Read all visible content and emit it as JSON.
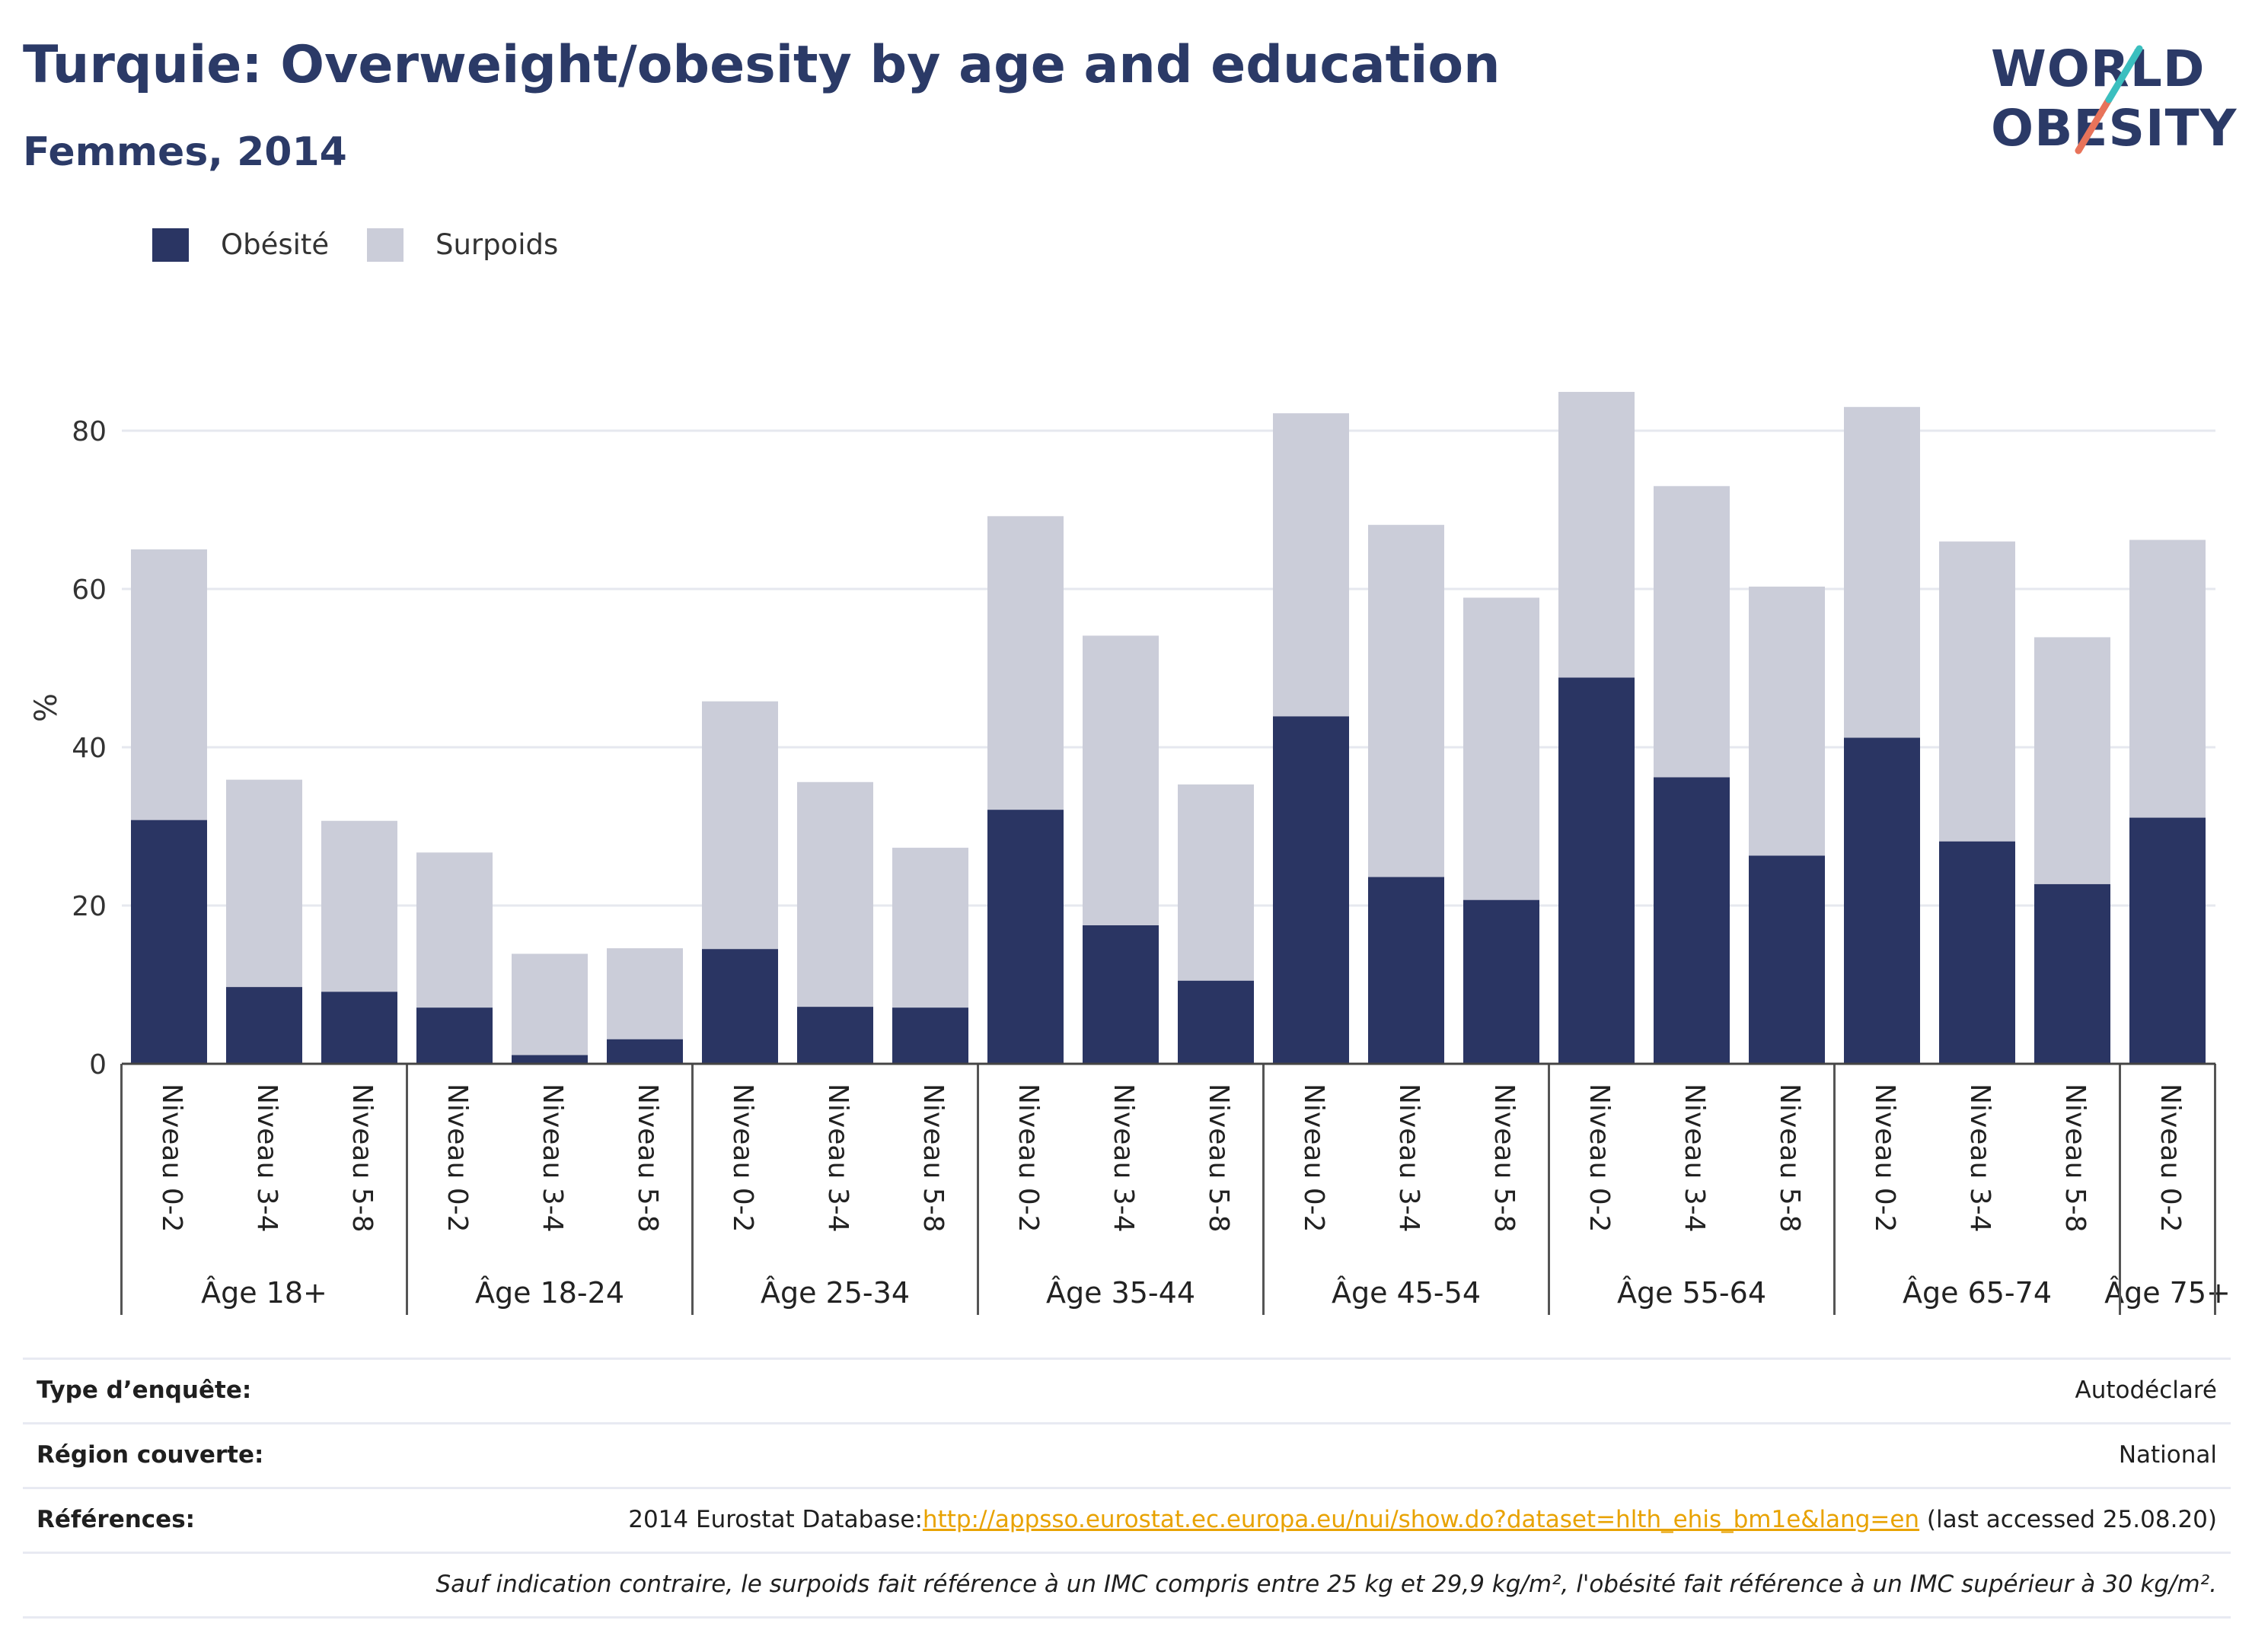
{
  "header": {
    "title": "Turquie: Overweight/obesity by age and education",
    "subtitle": "Femmes, 2014"
  },
  "logo": {
    "line1": "WORLD",
    "line2": "OBESITY"
  },
  "legend": {
    "items": [
      {
        "label": "Obésité",
        "color": "#2a3563"
      },
      {
        "label": "Surpoids",
        "color": "#cbcdd9"
      }
    ]
  },
  "chart_data": {
    "type": "bar",
    "stacked": true,
    "ylabel": "%",
    "ylim": [
      0,
      90
    ],
    "yticks": [
      0,
      20,
      40,
      60,
      80
    ],
    "grid": true,
    "legend_position": "top-left",
    "groups": [
      {
        "label": "Âge 18+",
        "categories": [
          "Niveau 0-2",
          "Niveau 3-4",
          "Niveau 5-8"
        ]
      },
      {
        "label": "Âge 18-24",
        "categories": [
          "Niveau 0-2",
          "Niveau 3-4",
          "Niveau 5-8"
        ]
      },
      {
        "label": "Âge 25-34",
        "categories": [
          "Niveau 0-2",
          "Niveau 3-4",
          "Niveau 5-8"
        ]
      },
      {
        "label": "Âge 35-44",
        "categories": [
          "Niveau 0-2",
          "Niveau 3-4",
          "Niveau 5-8"
        ]
      },
      {
        "label": "Âge 45-54",
        "categories": [
          "Niveau 0-2",
          "Niveau 3-4",
          "Niveau 5-8"
        ]
      },
      {
        "label": "Âge 55-64",
        "categories": [
          "Niveau 0-2",
          "Niveau 3-4",
          "Niveau 5-8"
        ]
      },
      {
        "label": "Âge 65-74",
        "categories": [
          "Niveau 0-2",
          "Niveau 3-4",
          "Niveau 5-8"
        ]
      },
      {
        "label": "Âge 75+",
        "categories": [
          "Niveau 0-2"
        ]
      }
    ],
    "series": [
      {
        "name": "Obésité",
        "color": "#2a3563",
        "values": [
          30.8,
          9.7,
          9.1,
          7.1,
          1.1,
          3.1,
          14.5,
          7.2,
          7.1,
          32.1,
          17.5,
          10.5,
          43.9,
          23.6,
          20.7,
          48.8,
          36.2,
          26.3,
          41.2,
          28.1,
          22.7,
          31.1
        ]
      },
      {
        "name": "Surpoids",
        "color": "#cbcdd9",
        "values": [
          34.2,
          26.2,
          21.6,
          19.6,
          12.8,
          11.5,
          31.3,
          28.4,
          20.2,
          37.1,
          36.6,
          24.8,
          38.3,
          44.5,
          38.2,
          36.1,
          36.8,
          34.0,
          41.8,
          37.9,
          31.2,
          35.1
        ]
      }
    ]
  },
  "info": {
    "rows": [
      {
        "label": "Type d’enquête:",
        "value": "Autodéclaré"
      },
      {
        "label": "Région couverte:",
        "value": "National"
      },
      {
        "label": "Références:",
        "value_prefix": "2014 Eurostat Database:",
        "link": "http://appsso.eurostat.ec.europa.eu/nui/show.do?dataset=hlth_ehis_bm1e&lang=en",
        "value_suffix": " (last accessed 25.08.20)"
      },
      {
        "label": "",
        "value": "Sauf indication contraire, le surpoids fait référence à un IMC compris entre 25 kg et 29,9 kg/m², l'obésité fait référence à un IMC supérieur à 30 kg/m²."
      }
    ]
  }
}
